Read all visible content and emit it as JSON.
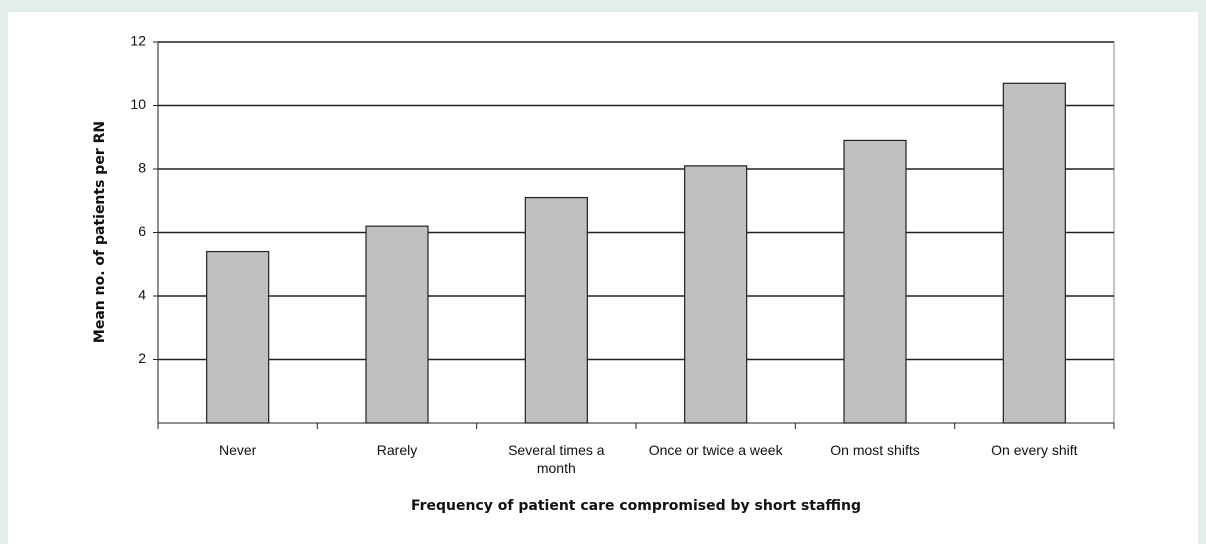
{
  "chart_data": {
    "type": "bar",
    "x_label": "Frequency of patient care compromised by short staffing",
    "y_label": "Mean no. of patients per RN",
    "categories": [
      "Never",
      "Rarely",
      "Several times a month",
      "Once or twice a week",
      "On most shifts",
      "On every shift"
    ],
    "values": [
      5.4,
      6.2,
      7.1,
      8.1,
      8.9,
      10.7
    ],
    "color": "#c0c0c0",
    "ylim": [
      0,
      12
    ],
    "yticks": [
      2,
      4,
      6,
      8,
      10,
      12
    ],
    "grid": true
  }
}
